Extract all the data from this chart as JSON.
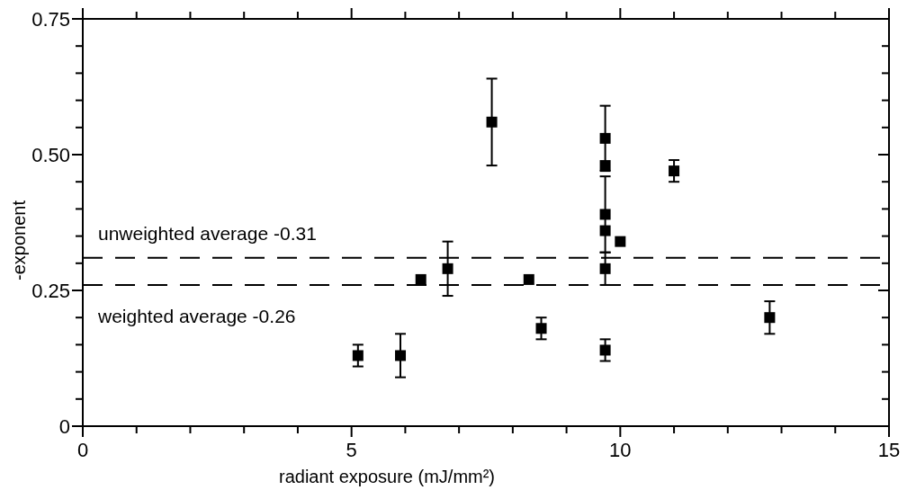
{
  "chart_data": {
    "type": "scatter",
    "xlabel": "radiant exposure (mJ/mm²)",
    "ylabel": "-exponent",
    "x": [
      5.12,
      5.91,
      6.29,
      6.79,
      7.61,
      8.3,
      8.53,
      9.72,
      9.72,
      9.72,
      9.72,
      9.72,
      9.72,
      10.0,
      11.0,
      12.78
    ],
    "values": [
      0.13,
      0.13,
      0.27,
      0.29,
      0.56,
      0.27,
      0.18,
      0.53,
      0.48,
      0.39,
      0.36,
      0.29,
      0.14,
      0.34,
      0.47,
      0.2
    ],
    "errors": [
      0.02,
      0.04,
      null,
      0.05,
      0.08,
      null,
      0.02,
      0.06,
      null,
      0.07,
      null,
      0.03,
      0.02,
      null,
      0.02,
      0.03
    ],
    "color": "#000000",
    "marker": "square",
    "xlim": [
      0,
      15
    ],
    "ylim": [
      0,
      0.75
    ],
    "xticks": [
      0,
      {
        "value": 1,
        "label": null
      },
      {
        "value": 2,
        "label": null
      },
      {
        "value": 3,
        "label": null
      },
      {
        "value": 4,
        "label": null
      },
      5,
      {
        "value": 6,
        "label": null
      },
      {
        "value": 7,
        "label": null
      },
      {
        "value": 8,
        "label": null
      },
      {
        "value": 9,
        "label": null
      },
      10,
      {
        "value": 11,
        "label": null
      },
      {
        "value": 12,
        "label": null
      },
      {
        "value": 13,
        "label": null
      },
      {
        "value": 14,
        "label": null
      },
      15
    ],
    "yticks": [
      0,
      {
        "value": 0.05,
        "label": null
      },
      {
        "value": 0.1,
        "label": null
      },
      {
        "value": 0.15,
        "label": null
      },
      {
        "value": 0.2,
        "label": null
      },
      0.25,
      {
        "value": 0.3,
        "label": null
      },
      {
        "value": 0.35,
        "label": null
      },
      {
        "value": 0.4,
        "label": null
      },
      {
        "value": 0.45,
        "label": null
      },
      {
        "value": 0.5,
        "label": "0.50"
      },
      {
        "value": 0.55,
        "label": null
      },
      {
        "value": 0.6,
        "label": null
      },
      {
        "value": 0.65,
        "label": null
      },
      {
        "value": 0.7,
        "label": null
      },
      0.75
    ],
    "ref_lines": [
      {
        "axis": "y",
        "value": 0.31,
        "label": "unweighted average -0.31",
        "line_style": "dashed",
        "color": "#000000"
      },
      {
        "axis": "y",
        "value": 0.26,
        "label": "weighted average -0.26",
        "line_style": "dashed",
        "color": "#000000"
      }
    ],
    "grid": false
  }
}
